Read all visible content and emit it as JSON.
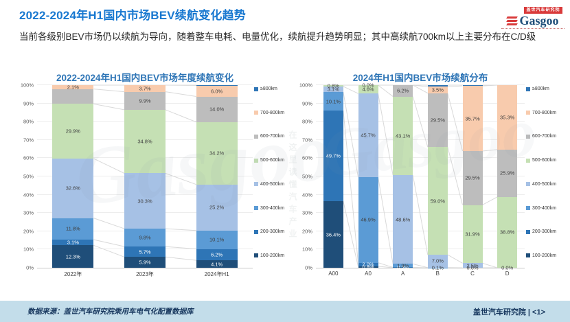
{
  "page": {
    "title": "2022-2024年H1国内市场BEV续航变化趋势",
    "subtitle": "当前各级别BEV市场仍以续航为导向，随着整车电耗、电量优化，续航提升趋势明显；其中高续航700km以上主要分布在C/D级",
    "logo": {
      "tagline_cn": "盖世汽车研究院",
      "brand": "Gasgoo"
    },
    "watermark": {
      "brand": "Gasgoo",
      "slogan": "在这里读懂汽车产业"
    },
    "footer": {
      "source": "数据来源：盖世汽车研究院乘用车电气化配置数据库",
      "credit": "盖世汽车研究院 | <1>"
    }
  },
  "theme": {
    "title_blue": "#1878D0",
    "chart_title_blue": "#2E75B6",
    "footer_bg": "#C3DDEA",
    "footer_text": "#17375E",
    "logo_red": "#D93A3A",
    "logo_navy": "#1F4E79",
    "watermark_gray": "#8A97A8",
    "grid_gray": "#EDEDED",
    "connector_gray": "#D9D9D9"
  },
  "chart_data": [
    {
      "type": "bar",
      "subtype": "stacked-100",
      "title": "2022-2024年H1国内BEV市场年度续航变化",
      "categories": [
        "2022年",
        "2023年",
        "2024年H1"
      ],
      "xlabel": "",
      "ylabel": "",
      "ylim": [
        0,
        100
      ],
      "grid": true,
      "legend_position": "right",
      "ytick_labels": [
        "0%",
        "10%",
        "20%",
        "30%",
        "40%",
        "50%",
        "60%",
        "70%",
        "80%",
        "90%",
        "100%"
      ],
      "series": [
        {
          "name": "100-200km",
          "color": "#1F4E79",
          "label_color": "#FFFFFF",
          "values": [
            12.3,
            5.9,
            4.1
          ],
          "labels": [
            "12.3%",
            "5.9%",
            "4.1%"
          ]
        },
        {
          "name": "200-300km",
          "color": "#2E75B6",
          "label_color": "#FFFFFF",
          "values": [
            3.1,
            5.7,
            6.2
          ],
          "labels": [
            "3.1%",
            "5.7%",
            "6.2%"
          ]
        },
        {
          "name": "300-400km",
          "color": "#5B9BD5",
          "label_color": "#404040",
          "values": [
            11.8,
            9.8,
            10.1
          ],
          "labels": [
            "11.8%",
            "9.8%",
            "10.1%"
          ]
        },
        {
          "name": "400-500km",
          "color": "#A6C1E5",
          "label_color": "#404040",
          "values": [
            32.6,
            30.3,
            25.2
          ],
          "labels": [
            "32.6%",
            "30.3%",
            "25.2%"
          ]
        },
        {
          "name": "500-600km",
          "color": "#C5E0B4",
          "label_color": "#404040",
          "values": [
            29.9,
            34.8,
            34.2
          ],
          "labels": [
            "29.9%",
            "34.8%",
            "34.2%"
          ]
        },
        {
          "name": "600-700km",
          "color": "#BDBDBD",
          "label_color": "#404040",
          "values": [
            8.2,
            9.9,
            14.0
          ],
          "labels": [
            null,
            "9.9%",
            "14.0%"
          ]
        },
        {
          "name": "700-800km",
          "color": "#F8CBAD",
          "label_color": "#404040",
          "values": [
            2.1,
            3.7,
            6.0
          ],
          "labels": [
            "2.1%",
            "3.7%",
            "6.0%"
          ]
        },
        {
          "name": "≥800km",
          "color": "#2E75B6",
          "label_color": "#FFFFFF",
          "values": [
            0.0,
            0.0,
            0.2
          ],
          "labels": [
            null,
            null,
            null
          ]
        }
      ]
    },
    {
      "type": "bar",
      "subtype": "stacked-100",
      "title": "2024年H1国内BEV市场续航分布",
      "categories": [
        "A00",
        "A0",
        "A",
        "B",
        "C",
        "D"
      ],
      "xlabel": "",
      "ylabel": "",
      "ylim": [
        0,
        100
      ],
      "grid": true,
      "legend_position": "right",
      "ytick_labels": [
        "0%",
        "10%",
        "20%",
        "30%",
        "40%",
        "50%",
        "60%",
        "70%",
        "80%",
        "90%",
        "100%"
      ],
      "series": [
        {
          "name": "100-200km",
          "color": "#1F4E79",
          "label_color": "#FFFFFF",
          "values": [
            36.4,
            0.8,
            0,
            0,
            0,
            0
          ],
          "labels": [
            "36.4%",
            "0.8%",
            null,
            null,
            null,
            null
          ]
        },
        {
          "name": "200-300km",
          "color": "#2E75B6",
          "label_color": "#FFFFFF",
          "values": [
            49.7,
            2.0,
            0.2,
            0,
            0,
            0
          ],
          "labels": [
            "49.7%",
            "2.0%",
            "0.2%",
            null,
            null,
            null
          ]
        },
        {
          "name": "300-400km",
          "color": "#5B9BD5",
          "label_color": "#404040",
          "values": [
            10.1,
            46.9,
            1.9,
            0.1,
            0.0,
            0
          ],
          "labels": [
            "10.1%",
            "46.9%",
            "1.9%",
            "0.1%",
            "0.0%",
            null
          ]
        },
        {
          "name": "400-500km",
          "color": "#A6C1E5",
          "label_color": "#404040",
          "values": [
            3.1,
            45.7,
            48.6,
            7.0,
            2.5,
            0.0
          ],
          "labels": [
            "3.1%",
            "45.7%",
            "48.6%",
            "7.0%",
            "2.5%",
            "0.0%"
          ]
        },
        {
          "name": "500-600km",
          "color": "#C5E0B4",
          "label_color": "#404040",
          "values": [
            0.8,
            4.6,
            43.1,
            59.0,
            31.9,
            38.8
          ],
          "labels": [
            "0.8%",
            "4.6%",
            "43.1%",
            "59.0%",
            "31.9%",
            "38.8%"
          ]
        },
        {
          "name": "600-700km",
          "color": "#BDBDBD",
          "label_color": "#404040",
          "values": [
            0,
            0.0,
            6.2,
            29.5,
            29.5,
            25.9
          ],
          "labels": [
            null,
            "0.0%",
            "6.2%",
            "29.5%",
            "29.5%",
            "25.9%"
          ]
        },
        {
          "name": "700-800km",
          "color": "#F8CBAD",
          "label_color": "#404040",
          "values": [
            0,
            0,
            0,
            3.5,
            35.7,
            35.3
          ],
          "labels": [
            null,
            null,
            null,
            "3.5%",
            "35.7%",
            "35.3%"
          ]
        },
        {
          "name": "≥800km",
          "color": "#2E75B6",
          "label_color": "#FFFFFF",
          "values": [
            0,
            0,
            0,
            0.9,
            0.4,
            0
          ],
          "labels": [
            null,
            null,
            null,
            null,
            null,
            null
          ]
        }
      ]
    }
  ]
}
